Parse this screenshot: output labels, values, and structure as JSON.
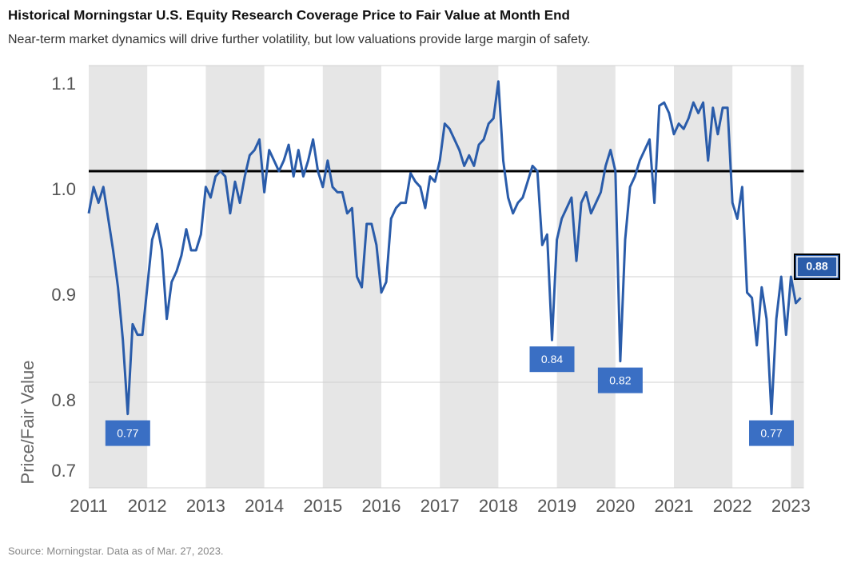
{
  "chart_data": {
    "type": "line",
    "title": "Historical Morningstar U.S. Equity Research Coverage Price to Fair Value at Month End",
    "subtitle": "Near-term market dynamics will drive further volatility, but low valuations provide large margin of safety.",
    "y_label": "Price/Fair Value",
    "source": "Source: Morningstar. Data as of Mar. 27, 2023.",
    "color": "#2a5caa",
    "reference_line": 1,
    "x": [
      2011,
      2011.083,
      2011.167,
      2011.25,
      2011.333,
      2011.417,
      2011.5,
      2011.583,
      2011.667,
      2011.75,
      2011.833,
      2011.917,
      2012,
      2012.083,
      2012.167,
      2012.25,
      2012.333,
      2012.417,
      2012.5,
      2012.583,
      2012.667,
      2012.75,
      2012.833,
      2012.917,
      2013,
      2013.083,
      2013.167,
      2013.25,
      2013.333,
      2013.417,
      2013.5,
      2013.583,
      2013.667,
      2013.75,
      2013.833,
      2013.917,
      2014,
      2014.083,
      2014.167,
      2014.25,
      2014.333,
      2014.417,
      2014.5,
      2014.583,
      2014.667,
      2014.75,
      2014.833,
      2014.917,
      2015,
      2015.083,
      2015.167,
      2015.25,
      2015.333,
      2015.417,
      2015.5,
      2015.583,
      2015.667,
      2015.75,
      2015.833,
      2015.917,
      2016,
      2016.083,
      2016.167,
      2016.25,
      2016.333,
      2016.417,
      2016.5,
      2016.583,
      2016.667,
      2016.75,
      2016.833,
      2016.917,
      2017,
      2017.083,
      2017.167,
      2017.25,
      2017.333,
      2017.417,
      2017.5,
      2017.583,
      2017.667,
      2017.75,
      2017.833,
      2017.917,
      2018,
      2018.083,
      2018.167,
      2018.25,
      2018.333,
      2018.417,
      2018.5,
      2018.583,
      2018.667,
      2018.75,
      2018.833,
      2018.917,
      2019,
      2019.083,
      2019.167,
      2019.25,
      2019.333,
      2019.417,
      2019.5,
      2019.583,
      2019.667,
      2019.75,
      2019.833,
      2019.917,
      2020,
      2020.083,
      2020.167,
      2020.25,
      2020.333,
      2020.417,
      2020.5,
      2020.583,
      2020.667,
      2020.75,
      2020.833,
      2020.917,
      2021,
      2021.083,
      2021.167,
      2021.25,
      2021.333,
      2021.417,
      2021.5,
      2021.583,
      2021.667,
      2021.75,
      2021.833,
      2021.917,
      2022,
      2022.083,
      2022.167,
      2022.25,
      2022.333,
      2022.417,
      2022.5,
      2022.583,
      2022.667,
      2022.75,
      2022.833,
      2022.917,
      2023,
      2023.083,
      2023.167
    ],
    "values": [
      0.96,
      0.985,
      0.97,
      0.985,
      0.955,
      0.925,
      0.89,
      0.84,
      0.77,
      0.855,
      0.845,
      0.845,
      0.89,
      0.935,
      0.95,
      0.925,
      0.86,
      0.895,
      0.905,
      0.92,
      0.945,
      0.925,
      0.925,
      0.94,
      0.985,
      0.975,
      0.995,
      1.0,
      0.995,
      0.96,
      0.99,
      0.97,
      0.995,
      1.015,
      1.02,
      1.03,
      0.98,
      1.02,
      1.01,
      1.0,
      1.01,
      1.025,
      0.995,
      1.02,
      0.995,
      1.01,
      1.03,
      1.0,
      0.985,
      1.01,
      0.985,
      0.98,
      0.98,
      0.96,
      0.965,
      0.9,
      0.89,
      0.95,
      0.95,
      0.93,
      0.885,
      0.895,
      0.955,
      0.965,
      0.97,
      0.97,
      0.998,
      0.99,
      0.985,
      0.965,
      0.995,
      0.99,
      1.01,
      1.045,
      1.04,
      1.03,
      1.02,
      1.005,
      1.015,
      1.005,
      1.025,
      1.03,
      1.045,
      1.05,
      1.085,
      1.01,
      0.975,
      0.96,
      0.97,
      0.975,
      0.99,
      1.005,
      1.0,
      0.93,
      0.94,
      0.84,
      0.935,
      0.955,
      0.965,
      0.975,
      0.915,
      0.97,
      0.98,
      0.96,
      0.97,
      0.98,
      1.005,
      1.02,
      1.0,
      0.82,
      0.935,
      0.985,
      0.995,
      1.01,
      1.02,
      1.03,
      0.97,
      1.062,
      1.065,
      1.055,
      1.035,
      1.045,
      1.04,
      1.05,
      1.065,
      1.055,
      1.065,
      1.01,
      1.06,
      1.035,
      1.06,
      1.06,
      0.97,
      0.955,
      0.985,
      0.885,
      0.88,
      0.835,
      0.89,
      0.86,
      0.77,
      0.86,
      0.9,
      0.845,
      0.9,
      0.875,
      0.88
    ],
    "annotations": [
      {
        "x": 2011.667,
        "value": 0.77
      },
      {
        "x": 2018.917,
        "value": 0.84
      },
      {
        "x": 2020.083,
        "value": 0.82
      },
      {
        "x": 2022.667,
        "value": 0.77
      },
      {
        "x": 2023.167,
        "value": 0.88
      }
    ],
    "xlim": [
      2011,
      2023.22
    ],
    "xticks": [
      2011,
      2012,
      2013,
      2014,
      2015,
      2016,
      2017,
      2018,
      2019,
      2020,
      2021,
      2022,
      2023
    ],
    "ylim": [
      0.7,
      1.1
    ],
    "yticks": [
      1.1,
      {
        "value": 1,
        "label": "1.0"
      },
      0.9,
      0.8,
      0.7
    ],
    "grid": true
  }
}
